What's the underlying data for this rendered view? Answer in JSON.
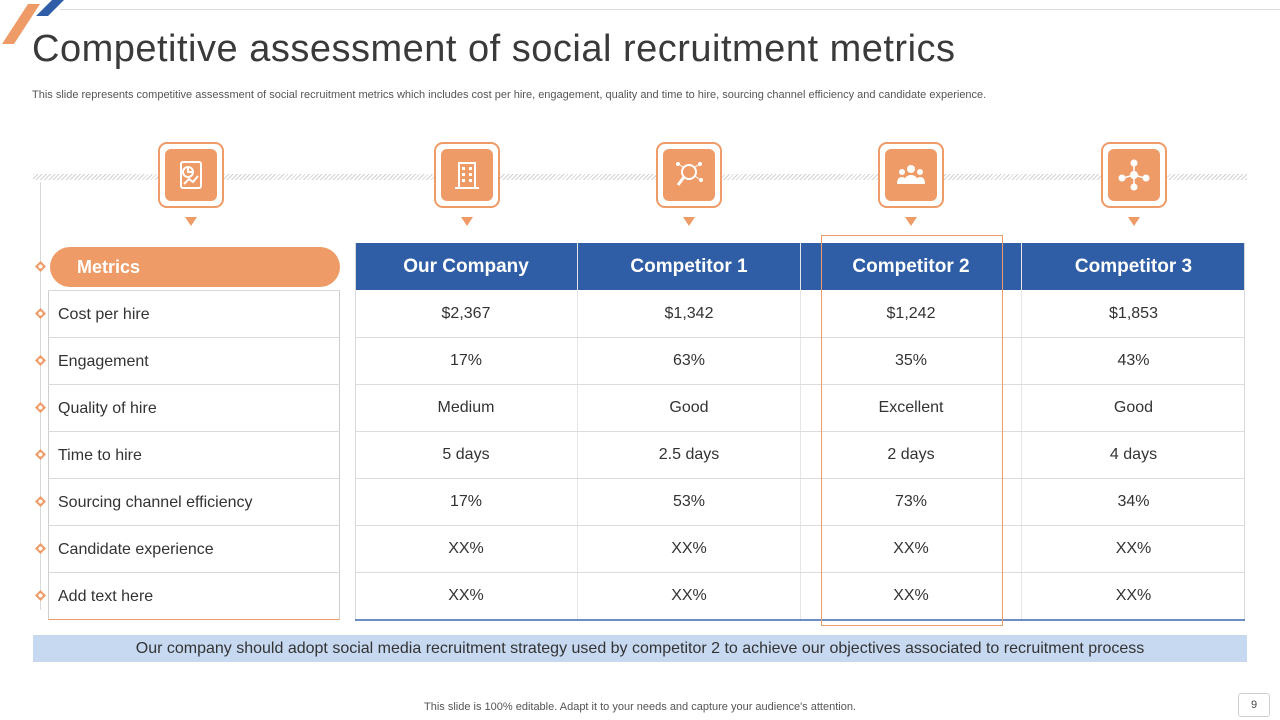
{
  "slide": {
    "title": "Competitive assessment of social recruitment metrics",
    "subtitle": "This slide represents competitive assessment of social recruitment metrics which includes cost per hire, engagement, quality and time to hire, sourcing channel efficiency and candidate experience.",
    "footer": "This slide is 100% editable. Adapt it to your needs and capture your audience's attention.",
    "page_number": "9",
    "conclusion": "Our company should adopt social media recruitment strategy used by competitor 2 to achieve our objectives associated to recruitment process"
  },
  "icons": [
    "report-chart-icon",
    "building-icon",
    "magnifier-network-icon",
    "people-group-icon",
    "network-people-icon"
  ],
  "table": {
    "metrics_label": "Metrics",
    "columns": [
      "Our Company",
      "Competitor 1",
      "Competitor 2",
      "Competitor 3"
    ],
    "rows": [
      {
        "metric": "Cost per hire",
        "values": [
          "$2,367",
          "$1,342",
          "$1,242",
          "$1,853"
        ]
      },
      {
        "metric": "Engagement",
        "values": [
          "17%",
          "63%",
          "35%",
          "43%"
        ]
      },
      {
        "metric": "Quality  of hire",
        "values": [
          "Medium",
          "Good",
          "Excellent",
          "Good"
        ]
      },
      {
        "metric": "Time to hire",
        "values": [
          "5 days",
          "2.5 days",
          "2 days",
          "4 days"
        ]
      },
      {
        "metric": "Sourcing channel efficiency",
        "values": [
          "17%",
          "53%",
          "73%",
          "34%"
        ]
      },
      {
        "metric": "Candidate experience",
        "values": [
          "XX%",
          "XX%",
          "XX%",
          "XX%"
        ]
      },
      {
        "metric": "Add text here",
        "values": [
          "XX%",
          "XX%",
          "XX%",
          "XX%"
        ]
      }
    ],
    "highlighted_column": "Competitor 2"
  },
  "colors": {
    "accent_orange": "#ee9b68",
    "header_blue": "#2f5ea6",
    "conclusion_bg": "#c7d9f1"
  }
}
